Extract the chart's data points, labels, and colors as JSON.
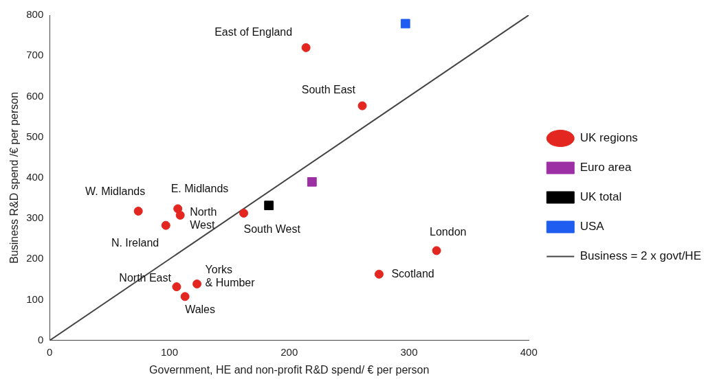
{
  "chart_data": {
    "type": "scatter",
    "xlabel": "Government, HE and non-profit R&D spend/ € per person",
    "ylabel": "Business R&D spend /€ per person",
    "xlim": [
      0,
      400
    ],
    "xticks": [
      0,
      100,
      200,
      300,
      400
    ],
    "ylim": [
      0,
      800
    ],
    "yticks": [
      0,
      100,
      200,
      300,
      400,
      500,
      600,
      700,
      800
    ],
    "grid": false,
    "legend": "right",
    "series": [
      {
        "name": "UK regions",
        "color": "#e3261f",
        "marker": "circle",
        "x": [
          214,
          261,
          74,
          107,
          109,
          97,
          162,
          323,
          275,
          106,
          123,
          113
        ],
        "values": [
          720,
          577,
          318,
          324,
          308,
          283,
          313,
          221,
          163,
          132,
          139,
          108
        ]
      },
      {
        "name": "Euro area",
        "color": "#9b2fa3",
        "marker": "square",
        "x": [
          219
        ],
        "values": [
          390
        ]
      },
      {
        "name": "UK total",
        "color": "#000000",
        "marker": "square",
        "x": [
          183
        ],
        "values": [
          332
        ]
      },
      {
        "name": "USA",
        "color": "#1f5cf0",
        "marker": "square",
        "x": [
          297
        ],
        "values": [
          779
        ]
      },
      {
        "name": "Business = 2 x govt/HE",
        "type": "line",
        "color": "#444444",
        "marker": "none",
        "x": [
          0,
          400
        ],
        "values": [
          0,
          800
        ]
      }
    ],
    "annotations": [
      {
        "text": "East of England",
        "x": 214,
        "y": 720
      },
      {
        "text": "South East",
        "x": 261,
        "y": 577
      },
      {
        "text": "W. Midlands",
        "x": 74,
        "y": 318
      },
      {
        "text": "E. Midlands",
        "x": 107,
        "y": 324
      },
      {
        "text": "North\nWest",
        "x": 109,
        "y": 308
      },
      {
        "text": "N. Ireland",
        "x": 97,
        "y": 283
      },
      {
        "text": "South West",
        "x": 162,
        "y": 313
      },
      {
        "text": "London",
        "x": 323,
        "y": 221
      },
      {
        "text": "Scotland",
        "x": 275,
        "y": 163
      },
      {
        "text": "North East",
        "x": 106,
        "y": 132
      },
      {
        "text": "Yorks\n& Humber",
        "x": 123,
        "y": 139
      },
      {
        "text": "Wales",
        "x": 113,
        "y": 108
      }
    ]
  }
}
